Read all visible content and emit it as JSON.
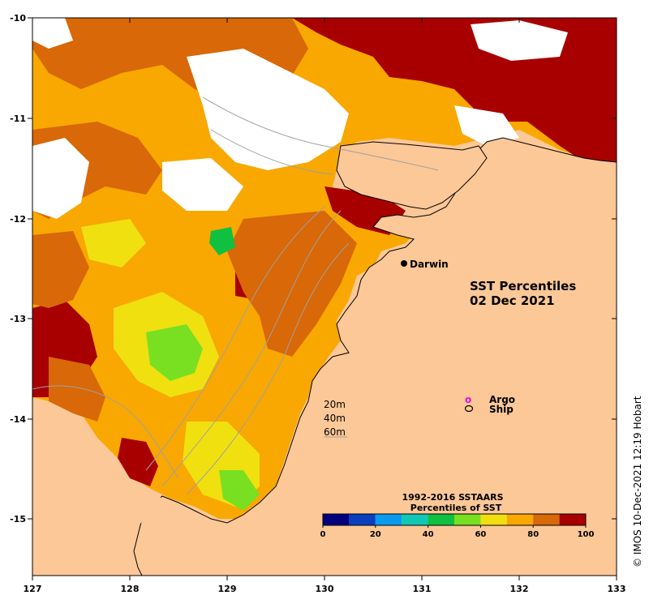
{
  "title": {
    "line1": "SST Percentiles",
    "line2": "02 Dec 2021"
  },
  "place_label": "Darwin",
  "legend": {
    "argo_symbol": "o",
    "argo_label": "Argo",
    "ship_label": "Ship"
  },
  "depth_labels": [
    "20m",
    "40m",
    "60m"
  ],
  "colorbar": {
    "title_line1": "1992-2016 SSTAARS",
    "title_line2": "Percentiles of SST",
    "colors": [
      "#00007f",
      "#0a3fbf",
      "#0a9bf0",
      "#10c8b4",
      "#10c040",
      "#78e020",
      "#f0e010",
      "#f8a800",
      "#d86808",
      "#a80000"
    ],
    "ticks": [
      "0",
      "20",
      "40",
      "60",
      "80",
      "100"
    ]
  },
  "x_ticks": [
    "127",
    "128",
    "129",
    "130",
    "131",
    "132",
    "133"
  ],
  "y_ticks": [
    "-10",
    "-11",
    "-12",
    "-13",
    "-14",
    "-15"
  ],
  "credit": "© IMOS 10-Dec-2021 12:19 Hobart",
  "colors": {
    "land": "#fcc898",
    "nodata": "#ffffff",
    "coast": "#000000",
    "bathy": "#a0a0a0"
  }
}
